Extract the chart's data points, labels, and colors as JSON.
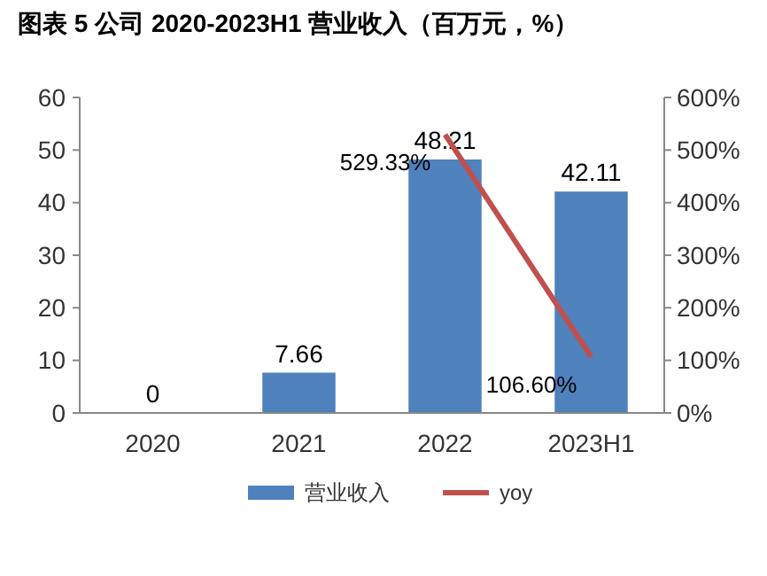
{
  "chart_data": {
    "type": "bar",
    "title": "图表 5 公司 2020-2023H1 营业收入（百万元，%）",
    "categories": [
      "2020",
      "2021",
      "2022",
      "2023H1"
    ],
    "series": [
      {
        "name": "营业收入",
        "color": "#4f81bd",
        "values": [
          0,
          7.66,
          48.21,
          42.11
        ],
        "value_labels": [
          "0",
          "7.66",
          "48.21",
          "42.11"
        ]
      },
      {
        "name": "yoy",
        "type": "line",
        "axis": "y2",
        "color": "#c0504d",
        "values": [
          null,
          null,
          529.33,
          106.6
        ],
        "value_labels": [
          null,
          null,
          "529.33%",
          "106.60%"
        ]
      }
    ],
    "ylim": [
      0,
      60
    ],
    "yticks": [
      0,
      10,
      20,
      30,
      40,
      50,
      60
    ],
    "y2lim": [
      0,
      600
    ],
    "y2ticks": [
      {
        "value": 0,
        "label": "0%"
      },
      {
        "value": 100,
        "label": "100%"
      },
      {
        "value": 200,
        "label": "200%"
      },
      {
        "value": 300,
        "label": "300%"
      },
      {
        "value": 400,
        "label": "400%"
      },
      {
        "value": 500,
        "label": "500%"
      },
      {
        "value": 600,
        "label": "600%"
      }
    ],
    "grid": false,
    "legend": "bottom",
    "marker": "none",
    "line_style": "solid"
  }
}
